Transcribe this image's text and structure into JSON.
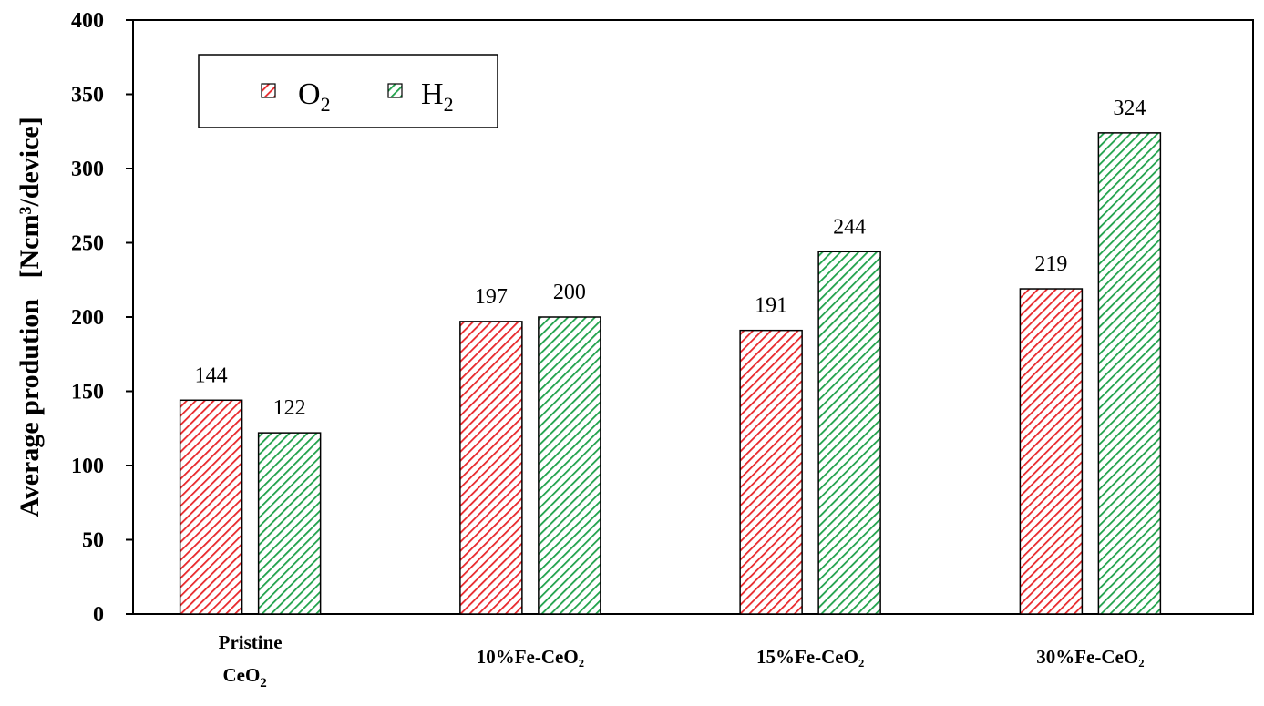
{
  "chart_data": {
    "type": "bar",
    "title": "",
    "ylabel": "Average prodution   [Ncm³/device]",
    "xlabel": "",
    "ylim": [
      0,
      400
    ],
    "yticks": [
      0,
      50,
      100,
      150,
      200,
      250,
      300,
      350,
      400
    ],
    "grid": false,
    "legend_position": "top-left",
    "categories": [
      {
        "line1": "Pristine",
        "line2": "CeO",
        "sub": "2"
      },
      {
        "line1": "10%Fe-CeO₂"
      },
      {
        "line1": "15%Fe-CeO₂"
      },
      {
        "line1": "30%Fe-CeO₂"
      }
    ],
    "series": [
      {
        "name": "O",
        "sub": "2",
        "color": "#e8262a",
        "values": [
          144,
          197,
          191,
          219
        ]
      },
      {
        "name": "H",
        "sub": "2",
        "color": "#1fa14a",
        "values": [
          122,
          200,
          244,
          324
        ]
      }
    ]
  }
}
